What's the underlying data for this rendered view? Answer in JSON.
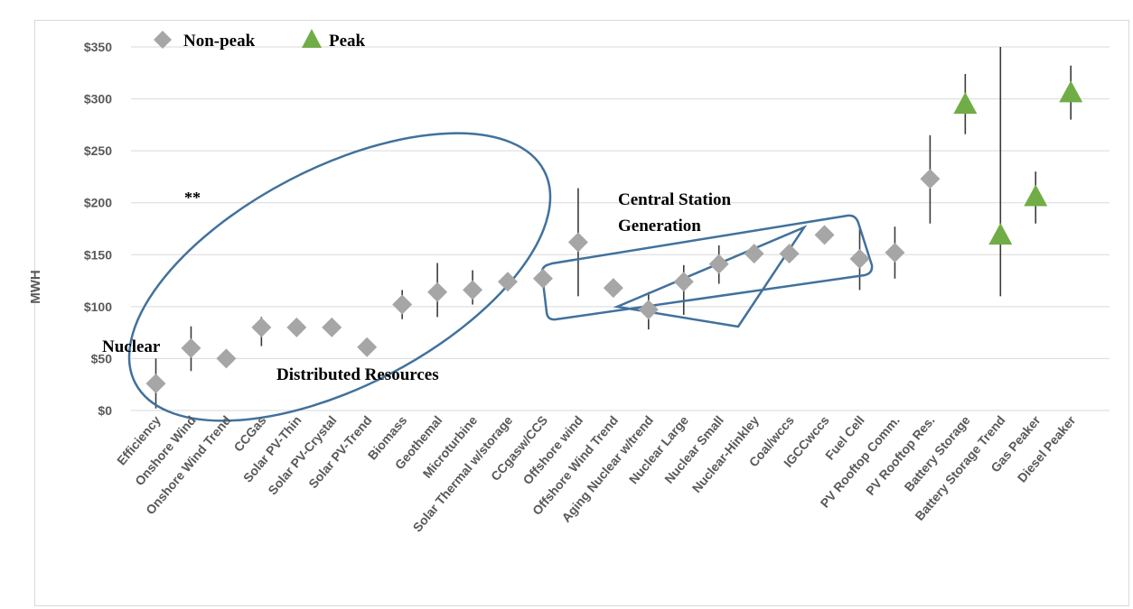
{
  "chart_data": {
    "type": "scatter",
    "ylabel": "MWH",
    "ylim": [
      0,
      350
    ],
    "yticks": [
      0,
      50,
      100,
      150,
      200,
      250,
      300,
      350
    ],
    "ytick_labels": [
      "$0",
      "$50",
      "$100",
      "$150",
      "$200",
      "$250",
      "$300",
      "$350"
    ],
    "grid": true,
    "legend_position": "top-left",
    "categories": [
      "Efficiency",
      "Onshore Wind",
      "Onshore Wind Trend",
      "CCGas",
      "Solar PV-Thin",
      "Solar PV-Crystal",
      "Solar PV-Trend",
      "Biomass",
      "Geothemal",
      "Microturbine",
      "Solar Thermal w/storage",
      "CCgasw/CCS",
      "Offshore wind",
      "Offshore Wind Trend",
      "Aging Nuclear w/trend",
      "Nuclear Large",
      "Nuclear Small",
      "Nuclear-Hinkley",
      "Coal/wccs",
      "IGCCwccs",
      "Fuel Cell",
      "PV Rooftop Comm.",
      "PV Rooftop Res.",
      "Battery Storage",
      "Battery  Storage Trend",
      "Gas Peaker",
      "Diesel Peaker"
    ],
    "series": [
      {
        "name": "Non-peak",
        "marker": "diamond",
        "color": "#a6a6a6",
        "values": [
          26,
          60,
          50,
          80,
          80,
          80,
          61,
          102,
          114,
          116,
          124,
          127,
          162,
          118,
          97,
          124,
          141,
          151,
          151,
          169,
          146,
          152,
          223,
          null,
          null,
          null,
          null
        ],
        "error_low": [
          2,
          38,
          null,
          62,
          null,
          null,
          null,
          88,
          90,
          102,
          null,
          null,
          110,
          null,
          78,
          92,
          122,
          null,
          null,
          null,
          116,
          127,
          180,
          null,
          null,
          null,
          null
        ],
        "error_high": [
          50,
          81,
          null,
          90,
          null,
          null,
          null,
          116,
          142,
          135,
          null,
          null,
          214,
          null,
          114,
          140,
          159,
          null,
          null,
          null,
          176,
          177,
          265,
          null,
          null,
          null,
          null
        ]
      },
      {
        "name": "Peak",
        "marker": "triangle",
        "color": "#70ad47",
        "values": [
          null,
          null,
          null,
          null,
          null,
          null,
          null,
          null,
          null,
          null,
          null,
          null,
          null,
          null,
          null,
          null,
          null,
          null,
          null,
          null,
          null,
          null,
          null,
          294,
          168,
          205,
          305
        ],
        "error_low": [
          null,
          null,
          null,
          null,
          null,
          null,
          null,
          null,
          null,
          null,
          null,
          null,
          null,
          null,
          null,
          null,
          null,
          null,
          null,
          null,
          null,
          null,
          null,
          266,
          110,
          180,
          280
        ],
        "error_high": [
          null,
          null,
          null,
          null,
          null,
          null,
          null,
          null,
          null,
          null,
          null,
          null,
          null,
          null,
          null,
          null,
          null,
          null,
          null,
          null,
          null,
          null,
          null,
          324,
          350,
          230,
          332
        ]
      }
    ],
    "annotations": {
      "nuclear": "Nuclear",
      "distributed": "Distributed Resources",
      "central_line1": "Central Station",
      "central_line2": "Generation",
      "stars": "**"
    }
  },
  "colors": {
    "grid": "#d9d9d9",
    "errorbar": "#3a3a3a",
    "outline": "#41719c"
  }
}
